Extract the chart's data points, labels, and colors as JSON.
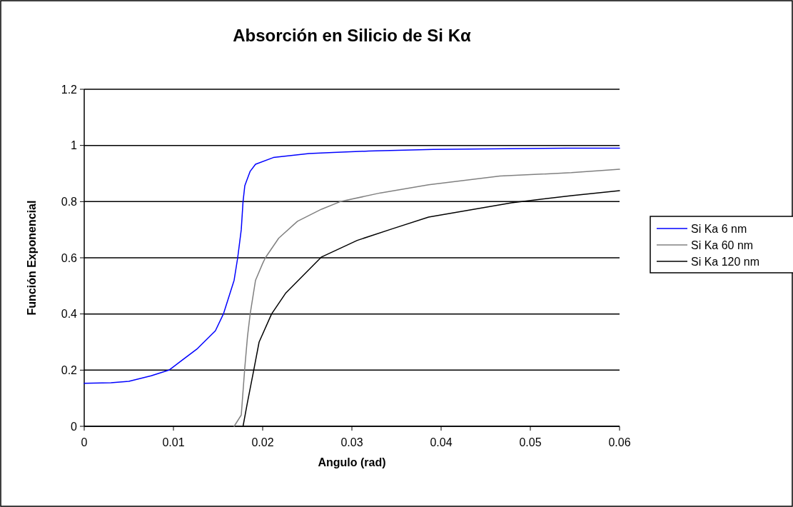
{
  "chart_data": {
    "type": "line",
    "title": "Absorción en Silicio de Si Kα",
    "xlabel": "Angulo (rad)",
    "ylabel": "Función Exponencial",
    "xlim": [
      0,
      0.06
    ],
    "xticks": [
      0,
      0.01,
      0.02,
      0.03,
      0.04,
      0.05,
      0.06
    ],
    "ylim": [
      0,
      1.2
    ],
    "yticks": [
      0,
      0.2,
      0.4,
      0.6,
      0.8,
      1,
      1.2
    ],
    "grid": "y",
    "legend": "right",
    "marker": "none",
    "line_style": "solid",
    "series": [
      {
        "name": "Si Ka 6 nm",
        "color": "#0000ff",
        "x": [
          0,
          0.003,
          0.005,
          0.0075,
          0.0095,
          0.0127,
          0.0147,
          0.0156,
          0.0168,
          0.0172,
          0.0176,
          0.0178,
          0.018,
          0.0186,
          0.0192,
          0.0212,
          0.0252,
          0.0279,
          0.0319,
          0.0391,
          0.054,
          0.06
        ],
        "values": [
          0.153,
          0.155,
          0.16,
          0.18,
          0.2,
          0.277,
          0.34,
          0.4,
          0.52,
          0.6,
          0.7,
          0.8,
          0.857,
          0.908,
          0.933,
          0.957,
          0.971,
          0.975,
          0.98,
          0.986,
          0.99,
          0.99
        ]
      },
      {
        "name": "Si Ka 60 nm",
        "color": "#808080",
        "x": [
          0.0168,
          0.0176,
          0.018,
          0.0183,
          0.0186,
          0.0192,
          0.02,
          0.0203,
          0.0218,
          0.0239,
          0.0266,
          0.0287,
          0.0332,
          0.0386,
          0.0466,
          0.0546,
          0.06
        ],
        "values": [
          0,
          0.04,
          0.21,
          0.32,
          0.4,
          0.52,
          0.58,
          0.6,
          0.67,
          0.73,
          0.773,
          0.8,
          0.831,
          0.86,
          0.891,
          0.903,
          0.915
        ]
      },
      {
        "name": "Si Ka 120 nm",
        "color": "#000000",
        "x": [
          0.0178,
          0.0183,
          0.019,
          0.0196,
          0.021,
          0.0226,
          0.0266,
          0.0306,
          0.0346,
          0.0386,
          0.0479,
          0.0546,
          0.06
        ],
        "values": [
          0,
          0.086,
          0.2,
          0.3,
          0.4,
          0.475,
          0.603,
          0.662,
          0.704,
          0.745,
          0.796,
          0.821,
          0.839
        ]
      }
    ]
  }
}
